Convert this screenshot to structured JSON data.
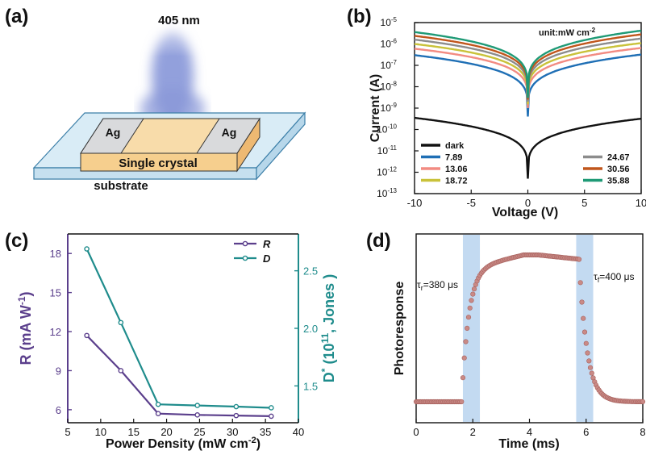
{
  "panels": {
    "a": {
      "label": "(a)",
      "wavelength": "405 nm",
      "electrode_left": "Ag",
      "electrode_right": "Ag",
      "crystal": "Single crystal",
      "substrate": "substrate",
      "colors": {
        "beam": "#7f8fd6",
        "crystal": "#f6cf8e",
        "electrode": "#d9dadc",
        "substrate": "#d9ecf6"
      }
    },
    "b": {
      "label": "(b)",
      "unit_note": "unit:mW cm",
      "unit_sup": "-2"
    },
    "c": {
      "label": "(c)"
    },
    "d": {
      "label": "(d)",
      "tau_r": "τ",
      "tau_r_sub": "r",
      "tau_r_val": "=380 μs",
      "tau_f": "τ",
      "tau_f_sub": "f",
      "tau_f_val": "=400 μs"
    }
  },
  "chart_data": [
    {
      "id": "b",
      "type": "line",
      "xlabel": "Voltage (V)",
      "ylabel": "Current (A)",
      "xlim": [
        -10,
        10
      ],
      "ylim_log10": [
        -13,
        -5
      ],
      "xticks": [
        "-10",
        "-5",
        "0",
        "5",
        "10"
      ],
      "yticks": [
        {
          "base": "10",
          "exp": "-5"
        },
        {
          "base": "10",
          "exp": "-6"
        },
        {
          "base": "10",
          "exp": "-7"
        },
        {
          "base": "10",
          "exp": "-8"
        },
        {
          "base": "10",
          "exp": "-9"
        },
        {
          "base": "10",
          "exp": "-10"
        },
        {
          "base": "10",
          "exp": "-11"
        },
        {
          "base": "10",
          "exp": "-12"
        },
        {
          "base": "10",
          "exp": "-13"
        }
      ],
      "log_scale_y": true,
      "series": [
        {
          "name": "dark",
          "color": "#111111",
          "i_neg10": 3.5e-10,
          "i_pos10": 3.2e-10,
          "i_min": 5e-13
        },
        {
          "name": "7.89",
          "color": "#1f6fb5",
          "i_neg10": 3e-07,
          "i_pos10": 3.2e-07,
          "i_min": 4e-10
        },
        {
          "name": "13.06",
          "color": "#f28b82",
          "i_neg10": 6e-07,
          "i_pos10": 6.5e-07,
          "i_min": 1e-09
        },
        {
          "name": "18.72",
          "color": "#c9c23a",
          "i_neg10": 1e-06,
          "i_pos10": 1.1e-06,
          "i_min": 1.5e-09
        },
        {
          "name": "24.67",
          "color": "#8c8c8c",
          "i_neg10": 1.6e-06,
          "i_pos10": 1.8e-06,
          "i_min": 2e-09
        },
        {
          "name": "30.56",
          "color": "#c0561c",
          "i_neg10": 2.4e-06,
          "i_pos10": 2.8e-06,
          "i_min": 2.5e-09
        },
        {
          "name": "35.88",
          "color": "#1f9a76",
          "i_neg10": 3.6e-06,
          "i_pos10": 4.2e-06,
          "i_min": 3e-09
        }
      ]
    },
    {
      "id": "c",
      "type": "line",
      "xlabel": "Power Density (mW cm",
      "xlabel_sup": "-2",
      "xlabel_end": ")",
      "ylabel_left": "R (mA W",
      "ylabel_left_sup": "-1",
      "ylabel_left_end": ")",
      "ylabel_right": "D",
      "ylabel_right_sup": "*",
      "ylabel_right_mid": " (10",
      "ylabel_right_sup2": "11",
      "ylabel_right_end": ", Jones )",
      "xlim": [
        5,
        40
      ],
      "ylim_left": [
        5,
        19.5
      ],
      "ylim_right": [
        1.18,
        2.82
      ],
      "xticks": [
        "5",
        "10",
        "15",
        "20",
        "25",
        "30",
        "35",
        "40"
      ],
      "yticks_left": [
        "6",
        "9",
        "12",
        "15",
        "18"
      ],
      "yticks_right": [
        "1.5",
        "2.0",
        "2.5"
      ],
      "x": [
        7.89,
        13.06,
        18.72,
        24.67,
        30.56,
        35.88
      ],
      "series": [
        {
          "name": "R",
          "color": "#5b3f8c",
          "axis": "left",
          "values": [
            11.7,
            9.0,
            5.7,
            5.6,
            5.55,
            5.5
          ]
        },
        {
          "name": "D",
          "color": "#1f8c8c",
          "axis": "right",
          "values": [
            2.69,
            2.05,
            1.34,
            1.33,
            1.32,
            1.31
          ]
        }
      ],
      "legend": "top-right"
    },
    {
      "id": "d",
      "type": "scatter",
      "xlabel": "Time (ms)",
      "ylabel": "Photoresponse",
      "xlim": [
        0,
        8
      ],
      "xticks": [
        "0",
        "2",
        "4",
        "6",
        "8"
      ],
      "point_color": "#c98a86",
      "highlight_color": "#b8d3ee",
      "highlight_ranges": [
        [
          1.65,
          2.25
        ],
        [
          5.65,
          6.25
        ]
      ],
      "rise_start": 1.6,
      "fall_start": 5.75,
      "level_low": 0.0,
      "level_high": 1.0
    }
  ]
}
